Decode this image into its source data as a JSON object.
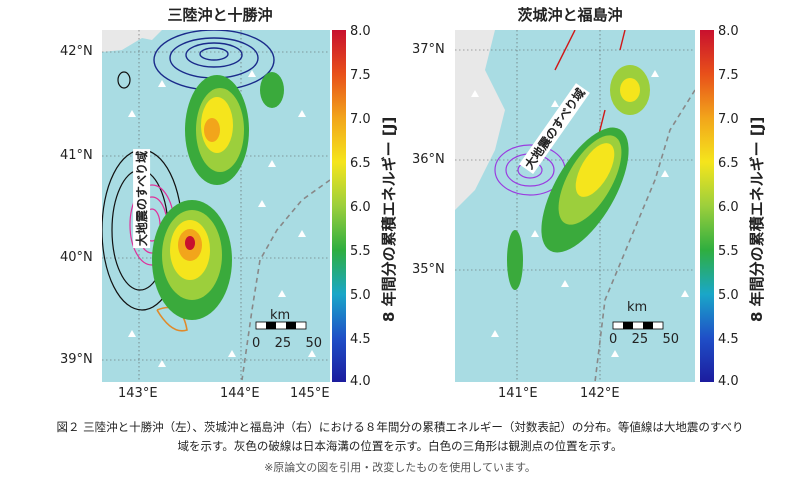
{
  "left_panel": {
    "title": "三陸沖と十勝沖",
    "lat_ticks": [
      "42°N",
      "41°N",
      "40°N",
      "39°N"
    ],
    "lon_ticks": [
      "143°E",
      "144°E",
      "145°E"
    ],
    "slip_label": "大地震のすべり域",
    "scale_unit": "km",
    "scale_ticks": [
      "0",
      "25",
      "50"
    ]
  },
  "right_panel": {
    "title": "茨城沖と福島沖",
    "lat_ticks": [
      "37°N",
      "36°N",
      "35°N"
    ],
    "lon_ticks": [
      "141°E",
      "142°E"
    ],
    "slip_label": "大地震のすべり域",
    "scale_unit": "km",
    "scale_ticks": [
      "0",
      "25",
      "50"
    ]
  },
  "colorbar": {
    "label": "8 年間分の累積エネルギー [J]",
    "ticks": [
      "8.0",
      "7.5",
      "7.0",
      "6.5",
      "6.0",
      "5.5",
      "5.0",
      "4.5",
      "4.0"
    ],
    "colors": [
      "#c8102e",
      "#e8501a",
      "#f2a51b",
      "#f5e51c",
      "#9ccf3c",
      "#2fae3f",
      "#1aa7c8",
      "#1f4fc7",
      "#1c1c9e"
    ]
  },
  "caption": {
    "line1": "図２ 三陸沖と十勝沖（左）、茨城沖と福島沖（右）における８年間分の累積エネルギー（対数表記）の分布。等値線は大地震のすべり",
    "line2": "域を示す。灰色の破線は日本海溝の位置を示す。白色の三角形は観測点の位置を示す。",
    "note": "※原論文の図を引用・改変したものを使用しています。"
  }
}
